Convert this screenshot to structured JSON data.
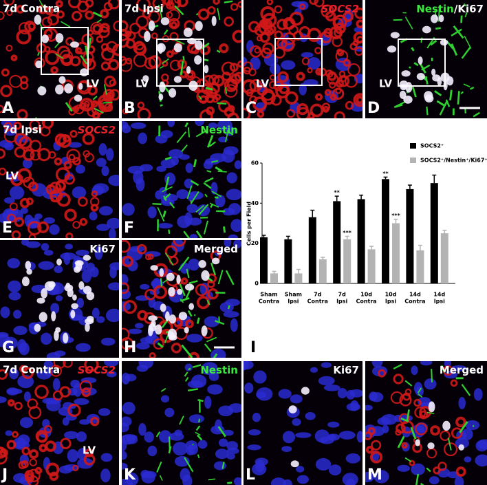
{
  "panels": [
    {
      "letter": "A",
      "left": "7d Contra",
      "right": [],
      "lv": "LV"
    },
    {
      "letter": "B",
      "left": "7d Ipsi",
      "right": [],
      "lv": "LV"
    },
    {
      "letter": "C",
      "left": null,
      "right": [
        "SOCS2"
      ],
      "lv": "LV"
    },
    {
      "letter": "D",
      "left": null,
      "right": [
        "Nestin",
        "/Ki67"
      ],
      "lv": "LV"
    },
    {
      "letter": "E",
      "left": "7d Ipsi",
      "right": [
        "SOCS2"
      ],
      "lv": "LV"
    },
    {
      "letter": "F",
      "left": null,
      "right": [
        "Nestin"
      ],
      "lv": null
    },
    {
      "letter": "G",
      "left": null,
      "right": [
        "Ki67"
      ],
      "lv": null
    },
    {
      "letter": "H",
      "left": null,
      "right": [
        "Merged"
      ],
      "lv": null
    },
    {
      "letter": "J",
      "left": "7d Contra",
      "right": [
        "SOCS2"
      ],
      "lv": "LV"
    },
    {
      "letter": "K",
      "left": null,
      "right": [
        "Nestin"
      ],
      "lv": null
    },
    {
      "letter": "L",
      "left": null,
      "right": [
        "Ki67"
      ],
      "lv": null
    },
    {
      "letter": "M",
      "left": null,
      "right": [
        "Merged"
      ],
      "lv": null
    }
  ],
  "chart_data": {
    "type": "bar",
    "panel_letter": "I",
    "y_label": "Cells per Field",
    "categories": [
      [
        "Sham",
        "Contra"
      ],
      [
        "Sham",
        "Ipsi"
      ],
      [
        "7d",
        "Contra"
      ],
      [
        "7d",
        "Ipsi"
      ],
      [
        "10d",
        "Contra"
      ],
      [
        "10d",
        "Ipsi"
      ],
      [
        "14d",
        "Contra"
      ],
      [
        "14d",
        "Ipsi"
      ]
    ],
    "series": [
      {
        "name": "SOCS2⁺",
        "color": "#000000",
        "values": [
          23,
          22,
          33,
          41,
          42,
          52,
          47,
          50
        ],
        "errors": [
          1,
          1.5,
          3.5,
          2.5,
          2,
          1,
          2,
          4
        ],
        "significance": [
          null,
          null,
          null,
          "**",
          null,
          "**",
          null,
          null
        ]
      },
      {
        "name": "SOCS2⁺/Nestin⁺/Ki67⁺",
        "color": "#b3b3b3",
        "values": [
          5,
          5,
          12,
          22,
          17,
          30,
          16.5,
          25
        ],
        "errors": [
          1,
          2,
          1,
          1.5,
          1.5,
          2,
          2.5,
          1.5
        ],
        "significance": [
          null,
          null,
          null,
          "***",
          null,
          "***",
          null,
          null
        ]
      }
    ],
    "ylim": [
      0,
      60
    ],
    "yticks": [
      0,
      20,
      40,
      60
    ]
  }
}
